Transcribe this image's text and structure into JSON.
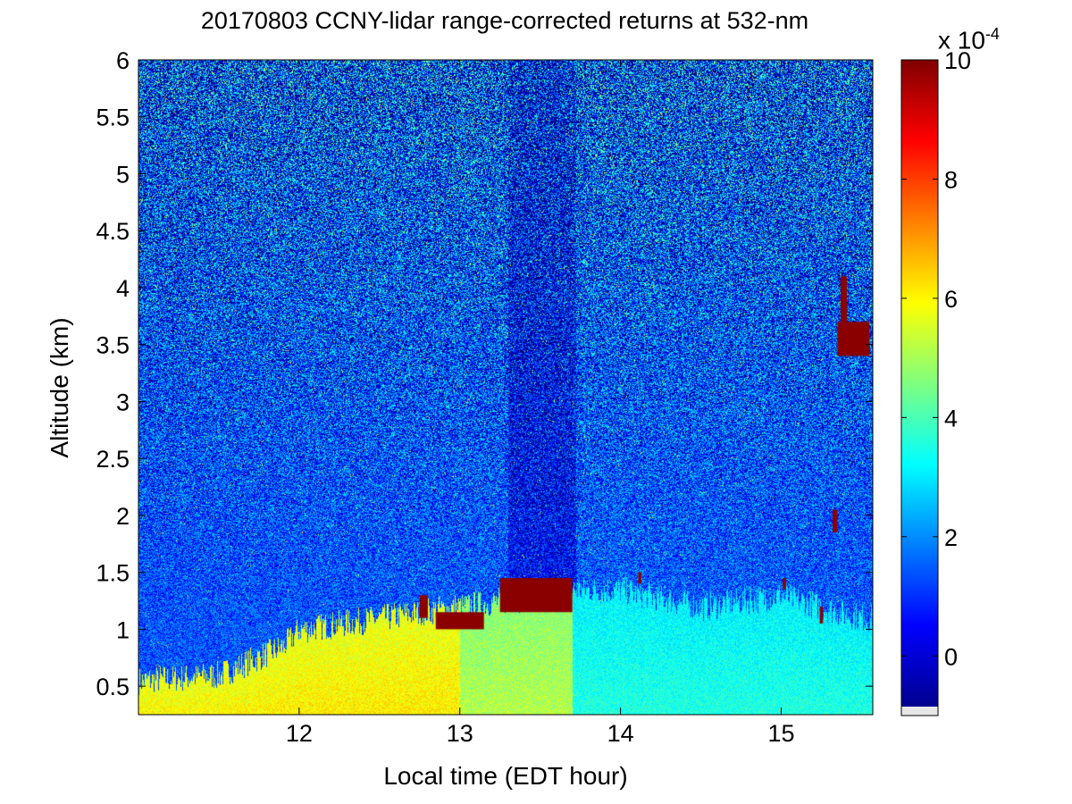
{
  "chart_data": {
    "type": "heatmap",
    "title": "20170803 CCNY-lidar range-corrected returns at 532-nm",
    "xlabel": "Local time (EDT hour)",
    "ylabel": "Altitude (km)",
    "xlim": [
      11.0,
      15.57
    ],
    "ylim": [
      0.25,
      6.0
    ],
    "x_ticks": [
      12,
      13,
      14,
      15
    ],
    "x_tick_labels": [
      "12",
      "13",
      "14",
      "15"
    ],
    "y_ticks": [
      0.5,
      1,
      1.5,
      2,
      2.5,
      3,
      3.5,
      4,
      4.5,
      5,
      5.5,
      6
    ],
    "y_tick_labels": [
      "0.5",
      "1",
      "1.5",
      "2",
      "2.5",
      "3",
      "3.5",
      "4",
      "4.5",
      "5",
      "5.5",
      "6"
    ],
    "colorbar": {
      "range": [
        -1,
        10
      ],
      "ticks": [
        0,
        2,
        4,
        6,
        8,
        10
      ],
      "tick_labels": [
        "0",
        "2",
        "4",
        "6",
        "8",
        "10"
      ],
      "exponent_base": "x 10",
      "exponent_power": "-4",
      "colormap": "jet"
    },
    "features": {
      "boundary_layer_top_km": [
        {
          "t": 11.0,
          "z": 0.55
        },
        {
          "t": 11.5,
          "z": 0.6
        },
        {
          "t": 11.9,
          "z": 0.85
        },
        {
          "t": 12.0,
          "z": 1.0
        },
        {
          "t": 12.5,
          "z": 1.1
        },
        {
          "t": 13.0,
          "z": 1.2
        },
        {
          "t": 13.5,
          "z": 1.3
        },
        {
          "t": 13.7,
          "z": 1.35
        },
        {
          "t": 14.0,
          "z": 1.35
        },
        {
          "t": 14.5,
          "z": 1.2
        },
        {
          "t": 15.0,
          "z": 1.3
        },
        {
          "t": 15.5,
          "z": 1.1
        }
      ],
      "cloud_segments": [
        {
          "t0": 13.25,
          "t1": 13.7,
          "z0": 1.15,
          "z1": 1.45
        },
        {
          "t0": 12.85,
          "t1": 13.15,
          "z0": 1.0,
          "z1": 1.15
        },
        {
          "t0": 12.75,
          "t1": 12.8,
          "z0": 1.1,
          "z1": 1.3
        },
        {
          "t0": 15.35,
          "t1": 15.55,
          "z0": 3.4,
          "z1": 3.7
        },
        {
          "t0": 15.37,
          "t1": 15.41,
          "z0": 3.7,
          "z1": 4.1
        },
        {
          "t0": 15.32,
          "t1": 15.35,
          "z0": 1.85,
          "z1": 2.05
        },
        {
          "t0": 15.24,
          "t1": 15.26,
          "z0": 1.05,
          "z1": 1.2
        },
        {
          "t0": 15.01,
          "t1": 15.03,
          "z0": 1.35,
          "z1": 1.45
        },
        {
          "t0": 14.11,
          "t1": 14.13,
          "z0": 1.4,
          "z1": 1.5
        }
      ]
    }
  }
}
